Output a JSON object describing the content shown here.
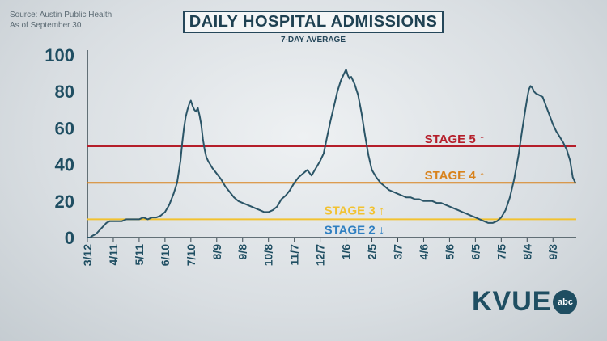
{
  "source_lines": [
    "Source: Austin Public Health",
    "As of September 30"
  ],
  "title": "DAILY HOSPITAL ADMISSIONS",
  "subtitle": "7-DAY AVERAGE",
  "logo": {
    "text": "KVUE",
    "badge": "abc"
  },
  "chart_data": {
    "type": "line",
    "title": "DAILY HOSPITAL ADMISSIONS",
    "subtitle": "7-DAY AVERAGE",
    "ylim": [
      0,
      100
    ],
    "yticks": [
      0,
      20,
      40,
      60,
      80,
      100
    ],
    "grid": false,
    "x_tick_labels": [
      "3/12",
      "4/11",
      "5/11",
      "6/10",
      "7/10",
      "8/9",
      "9/8",
      "10/8",
      "11/7",
      "12/7",
      "1/6",
      "2/5",
      "3/7",
      "4/6",
      "5/6",
      "6/5",
      "7/5",
      "8/4",
      "9/3"
    ],
    "x_tick_days": [
      0,
      30,
      60,
      90,
      120,
      150,
      180,
      210,
      240,
      270,
      300,
      330,
      360,
      390,
      420,
      450,
      480,
      510,
      540
    ],
    "x_range_days": [
      0,
      567
    ],
    "series": [
      {
        "color": "#2b5567",
        "x_days": [
          0,
          3,
          6,
          10,
          14,
          18,
          22,
          26,
          30,
          35,
          40,
          45,
          50,
          55,
          60,
          65,
          70,
          75,
          80,
          85,
          90,
          95,
          100,
          104,
          108,
          110,
          112,
          114,
          116,
          118,
          120,
          122,
          124,
          126,
          128,
          130,
          132,
          134,
          136,
          138,
          140,
          145,
          150,
          155,
          160,
          165,
          170,
          175,
          180,
          185,
          190,
          195,
          200,
          205,
          210,
          215,
          220,
          225,
          230,
          235,
          240,
          245,
          250,
          255,
          260,
          265,
          270,
          274,
          278,
          282,
          286,
          290,
          294,
          298,
          300,
          302,
          304,
          306,
          308,
          310,
          314,
          318,
          322,
          326,
          330,
          335,
          340,
          345,
          350,
          355,
          360,
          365,
          370,
          375,
          380,
          385,
          390,
          395,
          400,
          405,
          410,
          415,
          420,
          425,
          430,
          435,
          440,
          445,
          450,
          455,
          460,
          465,
          470,
          475,
          480,
          485,
          490,
          495,
          500,
          504,
          508,
          510,
          512,
          514,
          516,
          518,
          520,
          524,
          528,
          532,
          536,
          540,
          544,
          548,
          552,
          556,
          560,
          563,
          566
        ],
        "values": [
          0,
          0,
          1,
          2,
          4,
          6,
          8,
          9,
          9,
          9,
          9,
          10,
          10,
          10,
          10,
          11,
          10,
          11,
          11,
          12,
          14,
          18,
          24,
          30,
          42,
          52,
          60,
          66,
          70,
          73,
          75,
          72,
          70,
          69,
          71,
          67,
          62,
          54,
          48,
          44,
          42,
          38,
          35,
          32,
          28,
          25,
          22,
          20,
          19,
          18,
          17,
          16,
          15,
          14,
          14,
          15,
          17,
          21,
          23,
          26,
          30,
          33,
          35,
          37,
          34,
          38,
          42,
          46,
          55,
          64,
          72,
          80,
          86,
          90,
          92,
          89,
          87,
          88,
          86,
          84,
          78,
          68,
          56,
          45,
          37,
          33,
          30,
          28,
          26,
          25,
          24,
          23,
          22,
          22,
          21,
          21,
          20,
          20,
          20,
          19,
          19,
          18,
          17,
          16,
          15,
          14,
          13,
          12,
          11,
          10,
          9,
          8,
          8,
          9,
          11,
          15,
          22,
          32,
          45,
          58,
          70,
          76,
          81,
          83,
          82,
          80,
          79,
          78,
          77,
          72,
          67,
          62,
          58,
          55,
          52,
          48,
          42,
          33,
          30
        ],
        "line_width": 2
      }
    ],
    "reference_lines": [
      {
        "label": "STAGE 5 ↑",
        "value": 50,
        "color": "#b51e2a"
      },
      {
        "label": "STAGE 4 ↑",
        "value": 30,
        "color": "#d8821c"
      },
      {
        "label": "STAGE 3 ↑",
        "value": 10,
        "color": "#f2c230"
      },
      {
        "label": "STAGE 2 ↓",
        "value": 10,
        "color": "#2f7fc1"
      }
    ]
  }
}
